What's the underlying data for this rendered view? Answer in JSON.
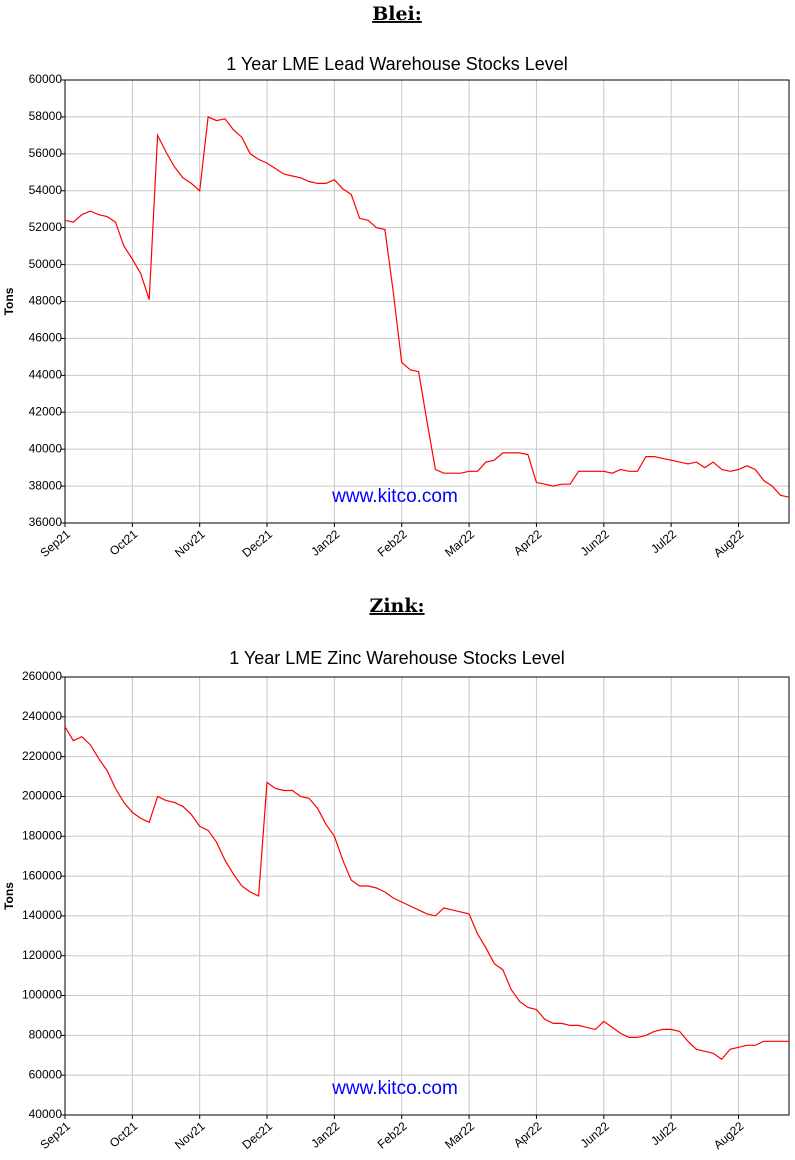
{
  "chart_data": [
    {
      "type": "line",
      "heading": "Blei:",
      "title": "1 Year LME Lead Warehouse Stocks Level",
      "ylabel": "Tons",
      "annotation": "www.kitco.com",
      "color": "#ff0000",
      "grid": true,
      "xlim": [
        0,
        86
      ],
      "xticks": [
        {
          "value": 0,
          "label": "Sep21"
        },
        {
          "value": 8,
          "label": "Oct21"
        },
        {
          "value": 16,
          "label": "Nov21"
        },
        {
          "value": 24,
          "label": "Dec21"
        },
        {
          "value": 32,
          "label": "Jan22"
        },
        {
          "value": 40,
          "label": "Feb22"
        },
        {
          "value": 48,
          "label": "Mar22"
        },
        {
          "value": 56,
          "label": "Apr22"
        },
        {
          "value": 64,
          "label": "Jun22"
        },
        {
          "value": 72,
          "label": "Jul22"
        },
        {
          "value": 80,
          "label": "Aug22"
        }
      ],
      "ylim": [
        36000,
        60000
      ],
      "yticks": [
        36000,
        38000,
        40000,
        42000,
        44000,
        46000,
        48000,
        50000,
        52000,
        54000,
        56000,
        58000,
        60000
      ],
      "values": [
        52400,
        52300,
        52700,
        52900,
        52700,
        52600,
        52300,
        51000,
        50300,
        49500,
        48100,
        57000,
        56100,
        55300,
        54700,
        54400,
        54000,
        58000,
        57800,
        57900,
        57300,
        56900,
        56000,
        55700,
        55500,
        55200,
        54900,
        54800,
        54700,
        54500,
        54400,
        54400,
        54600,
        54100,
        53800,
        52500,
        52400,
        52000,
        51900,
        48500,
        44700,
        44300,
        44200,
        41500,
        38900,
        38700,
        38700,
        38700,
        38800,
        38800,
        39300,
        39400,
        39800,
        39800,
        39800,
        39700,
        38200,
        38100,
        38000,
        38100,
        38100,
        38800,
        38800,
        38800,
        38800,
        38700,
        38900,
        38800,
        38800,
        39600,
        39600,
        39500,
        39400,
        39300,
        39200,
        39300,
        39000,
        39300,
        38900,
        38800,
        38900,
        39100,
        38900,
        38300,
        38000,
        37500,
        37400
      ]
    },
    {
      "type": "line",
      "heading": "Zink:",
      "title": "1 Year LME Zinc Warehouse Stocks Level",
      "ylabel": "Tons",
      "annotation": "www.kitco.com",
      "color": "#ff0000",
      "grid": true,
      "xlim": [
        0,
        86
      ],
      "xticks": [
        {
          "value": 0,
          "label": "Sep21"
        },
        {
          "value": 8,
          "label": "Oct21"
        },
        {
          "value": 16,
          "label": "Nov21"
        },
        {
          "value": 24,
          "label": "Dec21"
        },
        {
          "value": 32,
          "label": "Jan22"
        },
        {
          "value": 40,
          "label": "Feb22"
        },
        {
          "value": 48,
          "label": "Mar22"
        },
        {
          "value": 56,
          "label": "Apr22"
        },
        {
          "value": 64,
          "label": "Jun22"
        },
        {
          "value": 72,
          "label": "Jul22"
        },
        {
          "value": 80,
          "label": "Aug22"
        }
      ],
      "ylim": [
        40000,
        260000
      ],
      "yticks": [
        40000,
        60000,
        80000,
        100000,
        120000,
        140000,
        160000,
        180000,
        200000,
        220000,
        240000,
        260000
      ],
      "values": [
        235000,
        228000,
        230000,
        226000,
        219000,
        213000,
        204000,
        197000,
        192000,
        189000,
        187000,
        200000,
        198000,
        197000,
        195000,
        191000,
        185000,
        183000,
        177000,
        168000,
        161000,
        155000,
        152000,
        150000,
        207000,
        204000,
        203000,
        203000,
        200000,
        199000,
        194000,
        186000,
        180000,
        168000,
        158000,
        155000,
        155000,
        154000,
        152000,
        149000,
        147000,
        145000,
        143000,
        141000,
        140000,
        144000,
        143000,
        142000,
        141000,
        131000,
        124000,
        116000,
        113000,
        103000,
        97000,
        94000,
        93000,
        88000,
        86000,
        86000,
        85000,
        85000,
        84000,
        83000,
        87000,
        84000,
        81000,
        79000,
        79000,
        80000,
        82000,
        83000,
        83000,
        82000,
        77000,
        73000,
        72000,
        71000,
        68000,
        73000,
        74000,
        75000,
        75000,
        77000,
        77000,
        77000,
        77000
      ]
    }
  ]
}
